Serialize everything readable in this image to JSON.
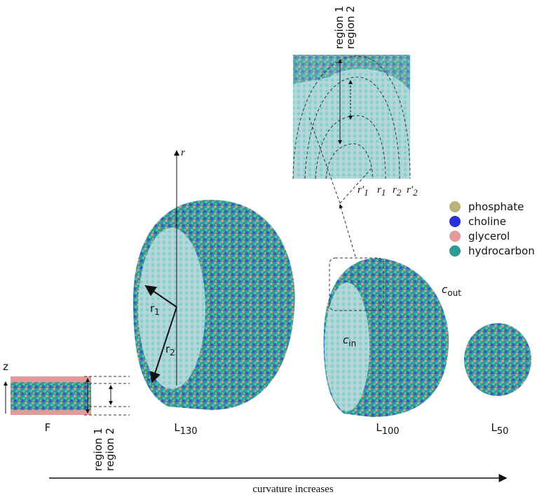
{
  "panels": [
    {
      "label": {
        "base": "F"
      },
      "axis": "z",
      "regions": [
        "region 1",
        "region 2"
      ]
    },
    {
      "label": {
        "base": "L",
        "sub": "130"
      },
      "axis": "r",
      "radii": [
        {
          "base": "r",
          "sub": "1"
        },
        {
          "base": "r",
          "sub": "2"
        }
      ]
    },
    {
      "label": {
        "base": "L",
        "sub": "100"
      },
      "surfaces": [
        {
          "base": "c",
          "sub": "in"
        },
        {
          "base": "c",
          "sub": "out"
        }
      ]
    },
    {
      "label": {
        "base": "L",
        "sub": "50"
      }
    }
  ],
  "inset": {
    "regions": [
      "region 1",
      "region 2"
    ],
    "radii": [
      "r′",
      "1",
      "r",
      "1",
      "r",
      "2",
      "r′",
      "2"
    ]
  },
  "legend": [
    "phosphate",
    "choline",
    "glycerol",
    "hydrocarbon"
  ],
  "footer": "curvature increases"
}
